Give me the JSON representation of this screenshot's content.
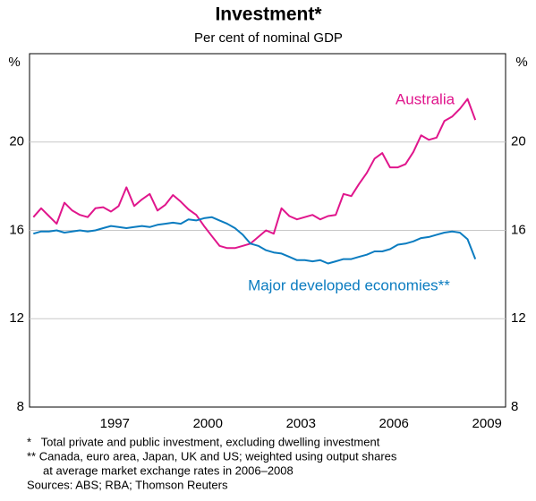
{
  "chart_data": {
    "type": "line",
    "title": "Investment*",
    "subtitle": "Per cent of nominal GDP",
    "y_label": "%",
    "x": [
      1994.875,
      1995.125,
      1995.375,
      1995.625,
      1995.875,
      1996.125,
      1996.375,
      1996.625,
      1996.875,
      1997.125,
      1997.375,
      1997.625,
      1997.875,
      1998.125,
      1998.375,
      1998.625,
      1998.875,
      1999.125,
      1999.375,
      1999.625,
      1999.875,
      2000.125,
      2000.375,
      2000.625,
      2000.875,
      2001.125,
      2001.375,
      2001.625,
      2001.875,
      2002.125,
      2002.375,
      2002.625,
      2002.875,
      2003.125,
      2003.375,
      2003.625,
      2003.875,
      2004.125,
      2004.375,
      2004.625,
      2004.875,
      2005.125,
      2005.375,
      2005.625,
      2005.875,
      2006.125,
      2006.375,
      2006.625,
      2006.875,
      2007.125,
      2007.375,
      2007.625,
      2007.875,
      2008.125,
      2008.375,
      2008.625,
      2008.875,
      2009.125
    ],
    "series": [
      {
        "name": "Australia",
        "color": "#e0168c",
        "values": [
          16.6,
          17.0,
          16.65,
          16.3,
          17.25,
          16.9,
          16.7,
          16.6,
          17.0,
          17.05,
          16.85,
          17.1,
          17.95,
          17.1,
          17.4,
          17.65,
          16.9,
          17.15,
          17.6,
          17.3,
          16.95,
          16.7,
          16.2,
          15.75,
          15.3,
          15.2,
          15.2,
          15.3,
          15.4,
          15.7,
          16.0,
          15.85,
          17.0,
          16.65,
          16.5,
          16.6,
          16.7,
          16.5,
          16.65,
          16.7,
          17.65,
          17.55,
          18.1,
          18.6,
          19.25,
          19.5,
          18.85,
          18.85,
          19.0,
          19.55,
          20.3,
          20.1,
          20.2,
          20.95,
          21.15,
          21.5,
          21.95,
          21.0
        ]
      },
      {
        "name": "Major developed economies**",
        "color": "#0b7cc0",
        "values": [
          15.85,
          15.95,
          15.95,
          16.0,
          15.9,
          15.95,
          16.0,
          15.95,
          16.0,
          16.1,
          16.2,
          16.15,
          16.1,
          16.15,
          16.2,
          16.15,
          16.25,
          16.3,
          16.35,
          16.3,
          16.5,
          16.45,
          16.55,
          16.6,
          16.45,
          16.3,
          16.1,
          15.8,
          15.4,
          15.3,
          15.1,
          15.0,
          14.95,
          14.8,
          14.65,
          14.65,
          14.6,
          14.65,
          14.5,
          14.6,
          14.7,
          14.7,
          14.8,
          14.9,
          15.05,
          15.05,
          15.15,
          15.35,
          15.4,
          15.5,
          15.65,
          15.7,
          15.8,
          15.9,
          15.95,
          15.9,
          15.6,
          14.7
        ]
      }
    ],
    "xlim": [
      1994.75,
      2010.1
    ],
    "xticks": [
      {
        "value": 1997.5,
        "label": "1997"
      },
      {
        "value": 2000.5,
        "label": "2000"
      },
      {
        "value": 2003.5,
        "label": "2003"
      },
      {
        "value": 2006.5,
        "label": "2006"
      },
      {
        "value": 2009.5,
        "label": "2009"
      }
    ],
    "ylim": [
      8,
      24
    ],
    "yticks": [
      8,
      12,
      16,
      20
    ],
    "grid": true,
    "notes": [
      "*   Total private and public investment, excluding dwelling investment",
      "** Canada, euro area, Japan, UK and US; weighted using output shares",
      "     at average market exchange rates in 2006–2008",
      "Sources: ABS; RBA; Thomson Reuters"
    ]
  }
}
